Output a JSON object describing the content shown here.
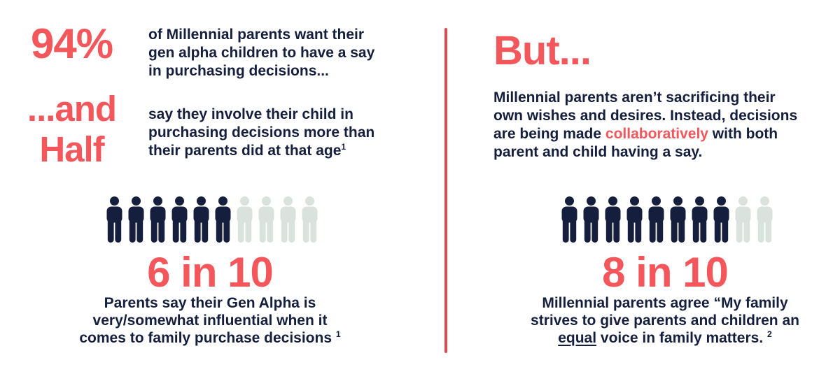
{
  "colors": {
    "accent_red": "#F3575C",
    "navy": "#151F3D",
    "inactive_gray": "#D9E2DD",
    "divider_red": "#E04B50",
    "background": "#FFFFFF"
  },
  "left_panel": {
    "stat_94": {
      "value": "94%",
      "description": "of Millennial parents want their\ngen alpha children to have a say\nin purchasing decisions..."
    },
    "stat_half": {
      "value": "...and\nHalf",
      "description": "say they involve their child in\npurchasing decisions more than\ntheir parents did at that age",
      "footnote": "1"
    }
  },
  "right_panel": {
    "heading": "But...",
    "paragraph": {
      "before": "Millennial parents aren’t sacrificing their\nown wishes and desires. Instead, decisions\nare being made ",
      "highlight": "collaboratively",
      "after": " with both\nparent and child having a say."
    }
  },
  "chart_data": [
    {
      "type": "pictograph",
      "panel": "left",
      "title": "6 in 10",
      "filled": 6,
      "total": 10,
      "icon": "person",
      "filled_color": "#151F3D",
      "empty_color": "#D9E2DD",
      "caption": "Parents say their Gen Alpha is\nvery/somewhat influential when it\ncomes to family purchase decisions ",
      "footnote": "1"
    },
    {
      "type": "pictograph",
      "panel": "right",
      "title": "8 in 10",
      "filled": 8,
      "total": 10,
      "icon": "person",
      "filled_color": "#151F3D",
      "empty_color": "#D9E2DD",
      "caption_before": "Millennial parents agree “My family\nstrives to give parents and children an\n",
      "caption_underlined": "equal",
      "caption_after": " voice in family matters. ",
      "footnote": "2"
    }
  ]
}
